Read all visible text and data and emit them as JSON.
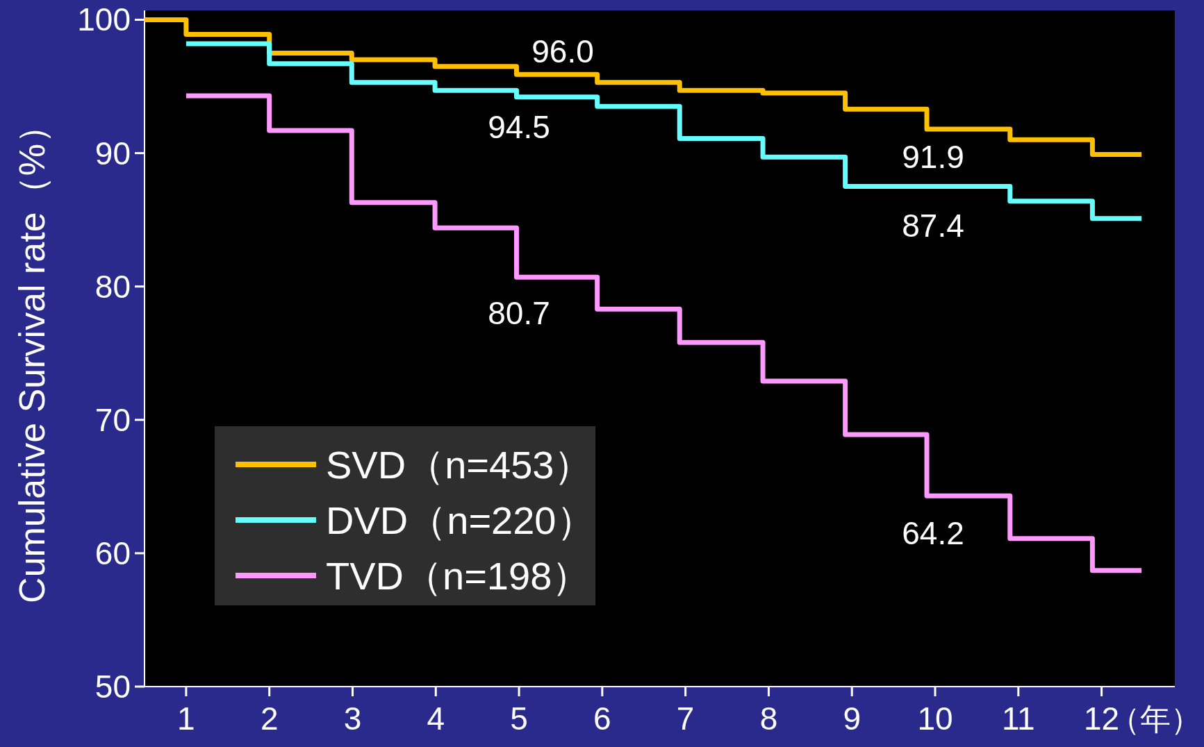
{
  "chart_data": {
    "type": "step",
    "ylabel": "Cumulative Survival rate（%）",
    "xlabel": "（年）",
    "xlim": [
      0.5,
      12.88
    ],
    "ylim": [
      50,
      100.7
    ],
    "xticks": [
      1,
      2,
      3,
      4,
      5,
      6,
      7,
      8,
      9,
      10,
      11,
      12
    ],
    "yticks": [
      50,
      60,
      70,
      80,
      90,
      100
    ],
    "legend": "bottom left",
    "grid": false,
    "series": [
      {
        "name": "SVD（n=453）",
        "color": "#ffc000",
        "x": [
          0.5,
          1.0,
          2.0,
          2.99,
          3.99,
          4.97,
          5.94,
          6.93,
          7.93,
          8.92,
          9.9,
          10.9,
          11.89,
          12.48
        ],
        "values": [
          100,
          98.9,
          97.5,
          97.0,
          96.5,
          95.9,
          95.3,
          94.7,
          94.5,
          93.3,
          91.8,
          91.0,
          89.9,
          89.9
        ]
      },
      {
        "name": "DVD（n=220）",
        "color": "#66ffff",
        "x": [
          1.0,
          2.0,
          2.99,
          3.99,
          4.97,
          5.94,
          6.93,
          7.93,
          8.92,
          10.9,
          11.89,
          12.48
        ],
        "values": [
          98.2,
          96.7,
          95.3,
          94.7,
          94.2,
          93.5,
          91.1,
          89.7,
          87.5,
          86.4,
          85.1,
          85.1
        ]
      },
      {
        "name": "TVD（n=198）",
        "color": "#ff99ff",
        "x": [
          1.0,
          2.0,
          2.99,
          3.99,
          4.97,
          5.94,
          6.93,
          7.93,
          8.92,
          9.9,
          10.9,
          11.89,
          12.48
        ],
        "values": [
          94.3,
          91.7,
          86.3,
          84.4,
          80.7,
          78.3,
          75.8,
          72.9,
          68.9,
          64.3,
          61.1,
          58.7,
          58.7
        ]
      }
    ],
    "annotations": [
      "96.0",
      "94.5",
      "91.9",
      "87.4",
      "80.7",
      "64.2"
    ]
  }
}
